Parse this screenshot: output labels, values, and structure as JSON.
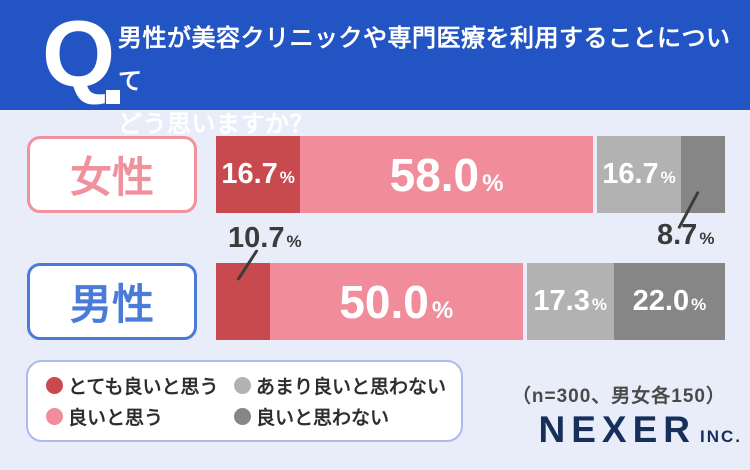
{
  "header": {
    "q_mark": "Q",
    "question_line1": "男性が美容クリニックや専門医療を利用することについて",
    "question_line2": "どう思いますか？"
  },
  "chart_data": {
    "type": "bar",
    "variant": "horizontal-stacked",
    "unit": "%",
    "categories": [
      "女性",
      "男性"
    ],
    "series": [
      {
        "name": "とても良いと思う",
        "color": "#C8494E",
        "values": [
          16.7,
          10.7
        ]
      },
      {
        "name": "良いと思う",
        "color": "#F18D9B",
        "values": [
          58.0,
          50.0
        ]
      },
      {
        "name": "あまり良いと思わない",
        "color": "#B2B2B2",
        "values": [
          16.7,
          17.3
        ]
      },
      {
        "name": "良いと思わない",
        "color": "#868686",
        "values": [
          8.7,
          22.0
        ]
      }
    ],
    "x_range": [
      0,
      100
    ],
    "legend_position": "bottom-left",
    "gap_after_series_index": 1,
    "note": "（n=300、男女各150）"
  },
  "rows": [
    {
      "label": "女性",
      "accent": "#F0919E",
      "segments": [
        {
          "display": "16.7",
          "value": 16.7,
          "size": "med"
        },
        {
          "display": "58.0",
          "value": 58.0,
          "size": "big"
        },
        {
          "display": "16.7",
          "value": 16.7,
          "size": "med"
        },
        {
          "display": "8.7",
          "value": 8.7,
          "size": "none"
        }
      ]
    },
    {
      "label": "男性",
      "accent": "#4A7BD9",
      "segments": [
        {
          "display": "10.7",
          "value": 10.7,
          "size": "none"
        },
        {
          "display": "50.0",
          "value": 50.0,
          "size": "big"
        },
        {
          "display": "17.3",
          "value": 17.3,
          "size": "med"
        },
        {
          "display": "22.0",
          "value": 22.0,
          "size": "med"
        }
      ]
    }
  ],
  "legend": {
    "items": [
      {
        "label": "とても良いと思う",
        "color": "#C8494E"
      },
      {
        "label": "あまり良いと思わない",
        "color": "#B2B2B2"
      },
      {
        "label": "良いと思う",
        "color": "#F18D9B"
      },
      {
        "label": "良いと思わない",
        "color": "#868686"
      }
    ]
  },
  "footer": {
    "note": "（n=300、男女各150）",
    "brand": "NEXER",
    "brand_suffix": "INC."
  },
  "colors": {
    "header_bg": "#2254C4",
    "body_bg": "#E9EDF9",
    "female_accent": "#F0919E",
    "male_accent": "#4A7BD9",
    "brand_navy": "#17305B"
  }
}
